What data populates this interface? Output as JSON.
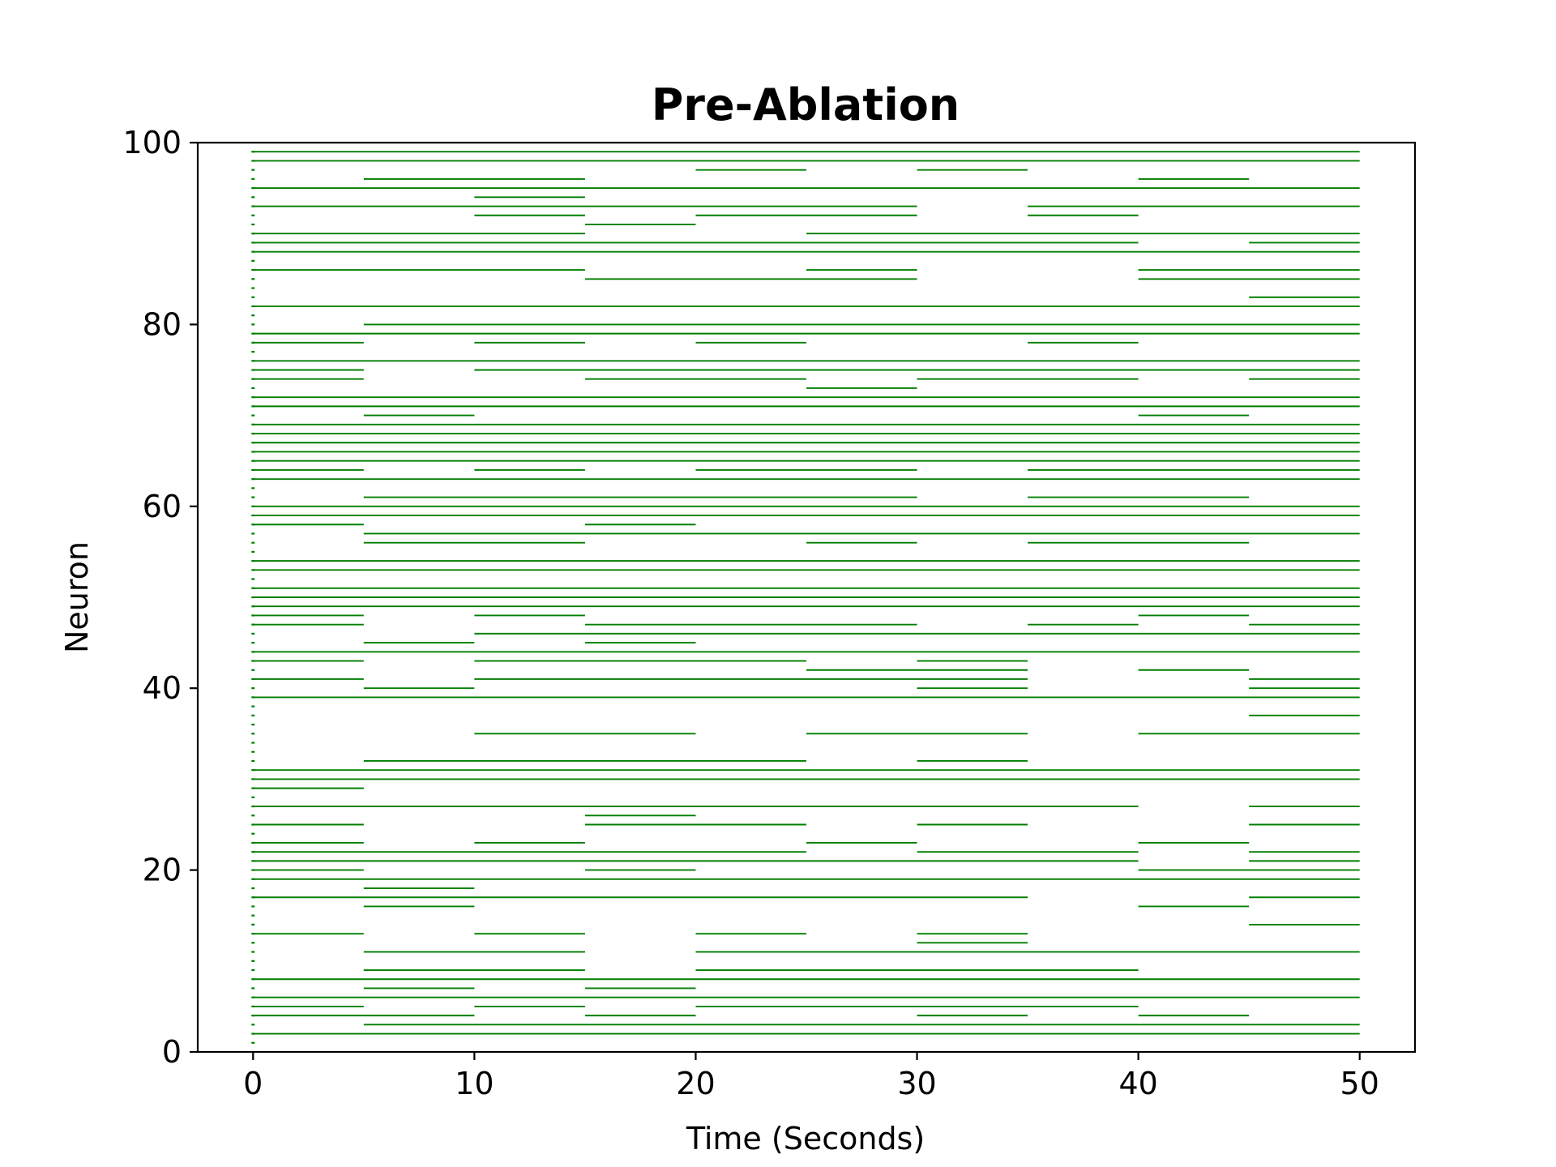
{
  "chart_data": {
    "type": "raster",
    "title": "Pre-Ablation",
    "xlabel": "Time (Seconds)",
    "ylabel": "Neuron",
    "xlim": [
      -2.5,
      52.5
    ],
    "ylim": [
      0,
      100
    ],
    "xticks": [
      0,
      10,
      20,
      30,
      40,
      50
    ],
    "yticks": [
      0,
      20,
      40,
      60,
      80,
      100
    ],
    "grid": false,
    "legend": "none",
    "color": "#007f00",
    "axis_color": "#000000",
    "segment_breaks": [
      0,
      5,
      10,
      15,
      20,
      25,
      30,
      35,
      40,
      45,
      50
    ],
    "active_segments": {
      "99": [
        0,
        1,
        2,
        3,
        4,
        5,
        6,
        7,
        8,
        9
      ],
      "98": [
        0,
        1,
        2,
        3,
        4,
        5,
        6,
        7,
        8,
        9
      ],
      "97": [
        4,
        6
      ],
      "96": [
        1,
        2,
        8
      ],
      "95": [
        0,
        1,
        2,
        3,
        4,
        5,
        6,
        7,
        8,
        9
      ],
      "94": [
        2
      ],
      "93": [
        0,
        1,
        2,
        3,
        4,
        5,
        7,
        8,
        9
      ],
      "92": [
        2,
        4,
        5,
        7
      ],
      "91": [
        3
      ],
      "90": [
        0,
        1,
        2,
        5,
        6,
        7,
        8,
        9
      ],
      "89": [
        0,
        1,
        2,
        3,
        4,
        5,
        6,
        7,
        9
      ],
      "88": [
        0,
        1,
        2,
        3,
        4,
        5,
        6,
        7,
        8,
        9
      ],
      "86": [
        0,
        1,
        2,
        5,
        8,
        9
      ],
      "85": [
        3,
        4,
        5,
        8,
        9
      ],
      "83": [
        9
      ],
      "82": [
        0,
        1,
        2,
        3,
        4,
        5,
        6,
        7,
        8,
        9
      ],
      "80": [
        1,
        2,
        3,
        4,
        5,
        6,
        7,
        8,
        9
      ],
      "79": [
        0,
        1,
        2,
        3,
        4,
        5,
        6,
        7,
        8,
        9
      ],
      "78": [
        0,
        2,
        4,
        7
      ],
      "76": [
        0,
        1,
        2,
        3,
        4,
        5,
        6,
        7,
        8,
        9
      ],
      "75": [
        0,
        2,
        3,
        4,
        5,
        6,
        7,
        8,
        9
      ],
      "74": [
        0,
        3,
        4,
        6,
        7,
        9
      ],
      "73": [
        5
      ],
      "72": [
        0,
        1,
        2,
        3,
        4,
        5,
        6,
        7,
        8,
        9
      ],
      "71": [
        0,
        1,
        2,
        3,
        4,
        5,
        6,
        7,
        8,
        9
      ],
      "70": [
        1,
        8
      ],
      "69": [
        0,
        1,
        2,
        3,
        4,
        5,
        6,
        7,
        8,
        9
      ],
      "68": [
        0,
        1,
        2,
        3,
        4,
        5,
        6,
        7,
        8,
        9
      ],
      "67": [
        0,
        1,
        2,
        3,
        4,
        5,
        6,
        7,
        8,
        9
      ],
      "66": [
        0,
        1,
        2,
        3,
        4,
        5,
        6,
        7,
        8,
        9
      ],
      "65": [
        0,
        1,
        2,
        3,
        4,
        5,
        6,
        7,
        8,
        9
      ],
      "64": [
        0,
        2,
        4,
        5,
        7,
        8,
        9
      ],
      "63": [
        0,
        1,
        2,
        3,
        4,
        5,
        6,
        7,
        8,
        9
      ],
      "61": [
        1,
        2,
        3,
        4,
        5,
        7,
        8
      ],
      "60": [
        0,
        1,
        2,
        3,
        4,
        5,
        6,
        7,
        8,
        9
      ],
      "59": [
        0,
        1,
        2,
        3,
        4,
        5,
        6,
        7,
        8,
        9
      ],
      "58": [
        0,
        3
      ],
      "57": [
        1,
        2,
        3,
        4,
        5,
        6,
        7,
        8,
        9
      ],
      "56": [
        1,
        2,
        5,
        7,
        8
      ],
      "54": [
        0,
        1,
        2,
        3,
        4,
        5,
        6,
        7,
        8,
        9
      ],
      "53": [
        0,
        1,
        2,
        3,
        4,
        5,
        6,
        7,
        8,
        9
      ],
      "51": [
        0,
        1,
        2,
        3,
        4,
        5,
        6,
        7,
        8,
        9
      ],
      "50": [
        0,
        1,
        2,
        3,
        4,
        5,
        6,
        7,
        8,
        9
      ],
      "49": [
        0,
        1,
        2,
        3,
        4,
        5,
        6,
        7,
        8,
        9
      ],
      "48": [
        0,
        2,
        8
      ],
      "47": [
        0,
        3,
        4,
        5,
        7,
        9
      ],
      "46": [
        2,
        3,
        4,
        5,
        6,
        7,
        8,
        9
      ],
      "45": [
        1,
        3
      ],
      "44": [
        0,
        1,
        2,
        3,
        4,
        5,
        6,
        7,
        8,
        9
      ],
      "43": [
        0,
        2,
        3,
        4,
        6
      ],
      "42": [
        5,
        6,
        8
      ],
      "41": [
        0,
        2,
        3,
        4,
        5,
        6,
        9
      ],
      "40": [
        1,
        6,
        9
      ],
      "39": [
        0,
        1,
        2,
        3,
        4,
        5,
        6,
        7,
        8,
        9
      ],
      "37": [
        9
      ],
      "35": [
        2,
        3,
        5,
        6,
        8,
        9
      ],
      "32": [
        1,
        2,
        3,
        4,
        6
      ],
      "31": [
        0,
        1,
        2,
        3,
        4,
        5,
        6,
        7,
        8,
        9
      ],
      "30": [
        0,
        1,
        2,
        3,
        4,
        5,
        6,
        7,
        8,
        9
      ],
      "29": [
        0
      ],
      "27": [
        0,
        1,
        2,
        3,
        4,
        5,
        6,
        7,
        9
      ],
      "26": [
        3
      ],
      "25": [
        0,
        3,
        4,
        6,
        9
      ],
      "23": [
        0,
        2,
        5,
        8
      ],
      "22": [
        0,
        1,
        2,
        3,
        4,
        6,
        7,
        9
      ],
      "21": [
        0,
        1,
        2,
        3,
        4,
        5,
        6,
        7,
        9
      ],
      "20": [
        0,
        3,
        8,
        9
      ],
      "19": [
        0,
        1,
        2,
        3,
        4,
        5,
        6,
        7,
        8,
        9
      ],
      "18": [
        1
      ],
      "17": [
        0,
        1,
        2,
        3,
        4,
        5,
        6,
        9
      ],
      "16": [
        1,
        8
      ],
      "14": [
        9
      ],
      "13": [
        0,
        2,
        4,
        6
      ],
      "12": [
        6
      ],
      "11": [
        1,
        2,
        4,
        5,
        6,
        7,
        8,
        9
      ],
      "9": [
        1,
        2,
        4,
        5,
        6,
        7
      ],
      "8": [
        0,
        1,
        2,
        3,
        4,
        5,
        6,
        7,
        8,
        9
      ],
      "7": [
        1,
        3
      ],
      "6": [
        0,
        1,
        2,
        3,
        4,
        5,
        6,
        7,
        8,
        9
      ],
      "5": [
        0,
        2,
        4,
        5,
        6,
        7
      ],
      "4": [
        0,
        1,
        3,
        6,
        8
      ],
      "3": [
        1,
        2,
        3,
        4,
        5,
        6,
        7,
        8,
        9
      ],
      "2": [
        0,
        1,
        2,
        3,
        4,
        5,
        6,
        7,
        8,
        9
      ]
    },
    "initial_spikes": {
      "t": 0,
      "neurons": [
        1,
        2,
        3,
        4,
        5,
        6,
        7,
        8,
        9,
        10,
        11,
        12,
        13,
        14,
        15,
        16,
        17,
        18,
        19,
        20,
        21,
        22,
        23,
        24,
        25,
        26,
        27,
        28,
        29,
        30,
        31,
        32,
        33,
        34,
        35,
        36,
        37,
        38,
        39,
        40,
        41,
        42,
        43,
        44,
        45,
        46,
        47,
        48,
        49,
        50,
        51,
        52,
        53,
        54,
        55,
        56,
        57,
        58,
        59,
        60,
        61,
        62,
        63,
        64,
        65,
        66,
        67,
        68,
        69,
        70,
        71,
        72,
        73,
        74,
        75,
        76,
        77,
        78,
        79,
        80,
        81,
        82,
        83,
        84,
        85,
        86,
        87,
        88,
        89,
        90,
        91,
        92,
        93,
        94,
        95,
        96,
        97,
        98,
        99
      ]
    }
  }
}
